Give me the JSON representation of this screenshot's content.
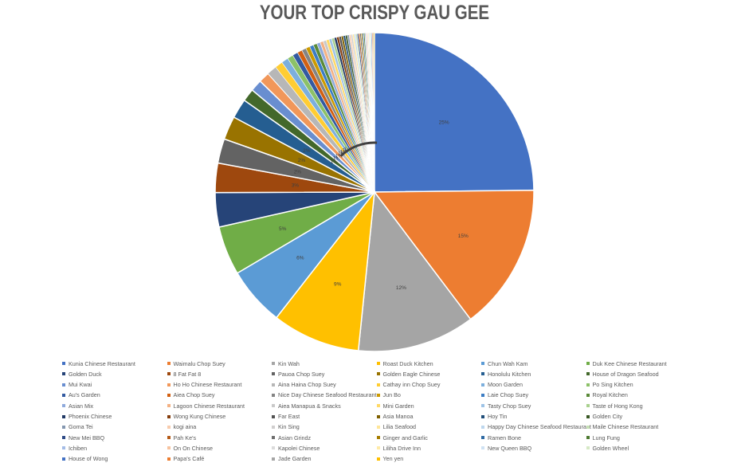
{
  "chart_data": {
    "type": "pie",
    "title": "YOUR TOP CRISPY GAU GEE",
    "legend_position": "bottom",
    "slices": [
      {
        "label": "Kunia Chinese Restaurant",
        "value": 25,
        "data_label": "25%",
        "color": "#4472C4"
      },
      {
        "label": "Waimalu Chop Suey",
        "value": 15,
        "data_label": "15%",
        "color": "#ED7D31"
      },
      {
        "label": "Kin Wah",
        "value": 12,
        "data_label": "12%",
        "color": "#A5A5A5"
      },
      {
        "label": "Roast Duck Kitchen",
        "value": 9,
        "data_label": "9%",
        "color": "#FFC000"
      },
      {
        "label": "Chun Wah Kam",
        "value": 6,
        "data_label": "6%",
        "color": "#5B9BD5"
      },
      {
        "label": "Duk Kee Chinese Restaurant",
        "value": 5,
        "data_label": "5%",
        "color": "#70AD47"
      },
      {
        "label": "Golden Duck",
        "value": 3.5,
        "data_label": "",
        "color": "#264478"
      },
      {
        "label": "8 Fat Fat 8",
        "value": 3,
        "data_label": "3%",
        "color": "#9E480E"
      },
      {
        "label": "Pauoa Chop Suey",
        "value": 2.5,
        "data_label": "2%",
        "color": "#636363"
      },
      {
        "label": "Golden Eagle Chinese",
        "value": 2.4,
        "data_label": "2%",
        "color": "#997300"
      },
      {
        "label": "Honolulu Kitchen",
        "value": 2,
        "data_label": "2%",
        "color": "#255E91"
      },
      {
        "label": "House of Dragon Seafood",
        "value": 1.3,
        "data_label": "1%",
        "color": "#43682B"
      },
      {
        "label": "Mui Kwai",
        "value": 1.2,
        "data_label": "1%",
        "color": "#698ED0"
      },
      {
        "label": "Ho Ho Chinese Restaurant",
        "value": 1.1,
        "data_label": "1%",
        "color": "#F1975A"
      },
      {
        "label": "Aina Haina Chop Suey",
        "value": 1,
        "data_label": "1%",
        "color": "#B7B7B7"
      },
      {
        "label": "Cathay inn Chop Suey",
        "value": 0.8,
        "data_label": "1%",
        "color": "#FFCD33"
      },
      {
        "label": "Moon Garden",
        "value": 0.7,
        "data_label": "1%",
        "color": "#7CAFDD"
      },
      {
        "label": "Po Sing Kitchen",
        "value": 0.6,
        "data_label": "1%",
        "color": "#8CC168"
      },
      {
        "label": "Au's Garden",
        "value": 0.55,
        "data_label": "",
        "color": "#335AA1"
      },
      {
        "label": "Aiea Chop Suey",
        "value": 0.5,
        "data_label": "",
        "color": "#D26012"
      },
      {
        "label": "Nice Day Chinese Seafood Restaurant",
        "value": 0.45,
        "data_label": "",
        "color": "#848484"
      },
      {
        "label": "Jun Bo",
        "value": 0.42,
        "data_label": "",
        "color": "#CC9A00"
      },
      {
        "label": "Laie Chop Suey",
        "value": 0.4,
        "data_label": "",
        "color": "#3C7DC4"
      },
      {
        "label": "Royal Kitchen",
        "value": 0.38,
        "data_label": "",
        "color": "#5A8A39"
      },
      {
        "label": "Asian Mix",
        "value": 0.35,
        "data_label": "",
        "color": "#8FAADC"
      },
      {
        "label": "Lagoon Chinese Restaurant",
        "value": 0.33,
        "data_label": "",
        "color": "#F4B183"
      },
      {
        "label": "Aiea Manapua & Snacks",
        "value": 0.31,
        "data_label": "",
        "color": "#C9C9C9"
      },
      {
        "label": "Mini Garden",
        "value": 0.3,
        "data_label": "",
        "color": "#FFD966"
      },
      {
        "label": "Tasty Chop Suey",
        "value": 0.28,
        "data_label": "",
        "color": "#9DC3E6"
      },
      {
        "label": "Taste of Hong Kong",
        "value": 0.26,
        "data_label": "",
        "color": "#A9D18E"
      },
      {
        "label": "Phoenix Chinese",
        "value": 0.25,
        "data_label": "",
        "color": "#203864"
      },
      {
        "label": "Wong Kung Chinese",
        "value": 0.24,
        "data_label": "",
        "color": "#843C0C"
      },
      {
        "label": "Far East",
        "value": 0.23,
        "data_label": "",
        "color": "#525252"
      },
      {
        "label": "Asia Manoa",
        "value": 0.22,
        "data_label": "",
        "color": "#7F6000"
      },
      {
        "label": "Hoy Tin",
        "value": 0.21,
        "data_label": "",
        "color": "#1F4E79"
      },
      {
        "label": "Golden City",
        "value": 0.2,
        "data_label": "",
        "color": "#385723"
      },
      {
        "label": "Goma Tei",
        "value": 0.19,
        "data_label": "",
        "color": "#8497B0"
      },
      {
        "label": "kogi aina",
        "value": 0.18,
        "data_label": "",
        "color": "#F8CBAD"
      },
      {
        "label": "Kin Sing",
        "value": 0.17,
        "data_label": "",
        "color": "#D0CECE"
      },
      {
        "label": "Lilia Seafood",
        "value": 0.16,
        "data_label": "",
        "color": "#FFE699"
      },
      {
        "label": "Happy Day Chinese Seafood Restaurant",
        "value": 0.15,
        "data_label": "",
        "color": "#BDD7EE"
      },
      {
        "label": "Maile Chinese Restaurant",
        "value": 0.15,
        "data_label": "",
        "color": "#C5E0B4"
      },
      {
        "label": "New Mei BBQ",
        "value": 0.14,
        "data_label": "",
        "color": "#2E4A86"
      },
      {
        "label": "Pah Ke's",
        "value": 0.14,
        "data_label": "",
        "color": "#B55A17"
      },
      {
        "label": "Asian Grindz",
        "value": 0.13,
        "data_label": "",
        "color": "#6E6E6E"
      },
      {
        "label": "Ginger and Garlic",
        "value": 0.13,
        "data_label": "",
        "color": "#A67D00"
      },
      {
        "label": "Ramen Bone",
        "value": 0.12,
        "data_label": "",
        "color": "#2F6AA3"
      },
      {
        "label": "Lung Fung",
        "value": 0.12,
        "data_label": "",
        "color": "#4E7A31"
      },
      {
        "label": "Ichiben",
        "value": 0.11,
        "data_label": "",
        "color": "#A4BCE6"
      },
      {
        "label": "On On Chinese",
        "value": 0.11,
        "data_label": "",
        "color": "#F7C29E"
      },
      {
        "label": "Kapolei Chinese",
        "value": 0.1,
        "data_label": "",
        "color": "#DBDBDB"
      },
      {
        "label": "Liliha Drive Inn",
        "value": 0.1,
        "data_label": "",
        "color": "#FFEBA8"
      },
      {
        "label": "New Queen BBQ",
        "value": 0.1,
        "data_label": "",
        "color": "#CFE2F3"
      },
      {
        "label": "Golden Wheel",
        "value": 0.1,
        "data_label": "",
        "color": "#D6E9C6"
      },
      {
        "label": "House of Wong",
        "value": 0.09,
        "data_label": "",
        "color": "#4472C4"
      },
      {
        "label": "Papa's Café",
        "value": 0.09,
        "data_label": "",
        "color": "#ED7D31"
      },
      {
        "label": "Jade Garden",
        "value": 0.09,
        "data_label": "",
        "color": "#A5A5A5"
      },
      {
        "label": "Yen yen",
        "value": 0.09,
        "data_label": "",
        "color": "#FFC000"
      }
    ]
  }
}
